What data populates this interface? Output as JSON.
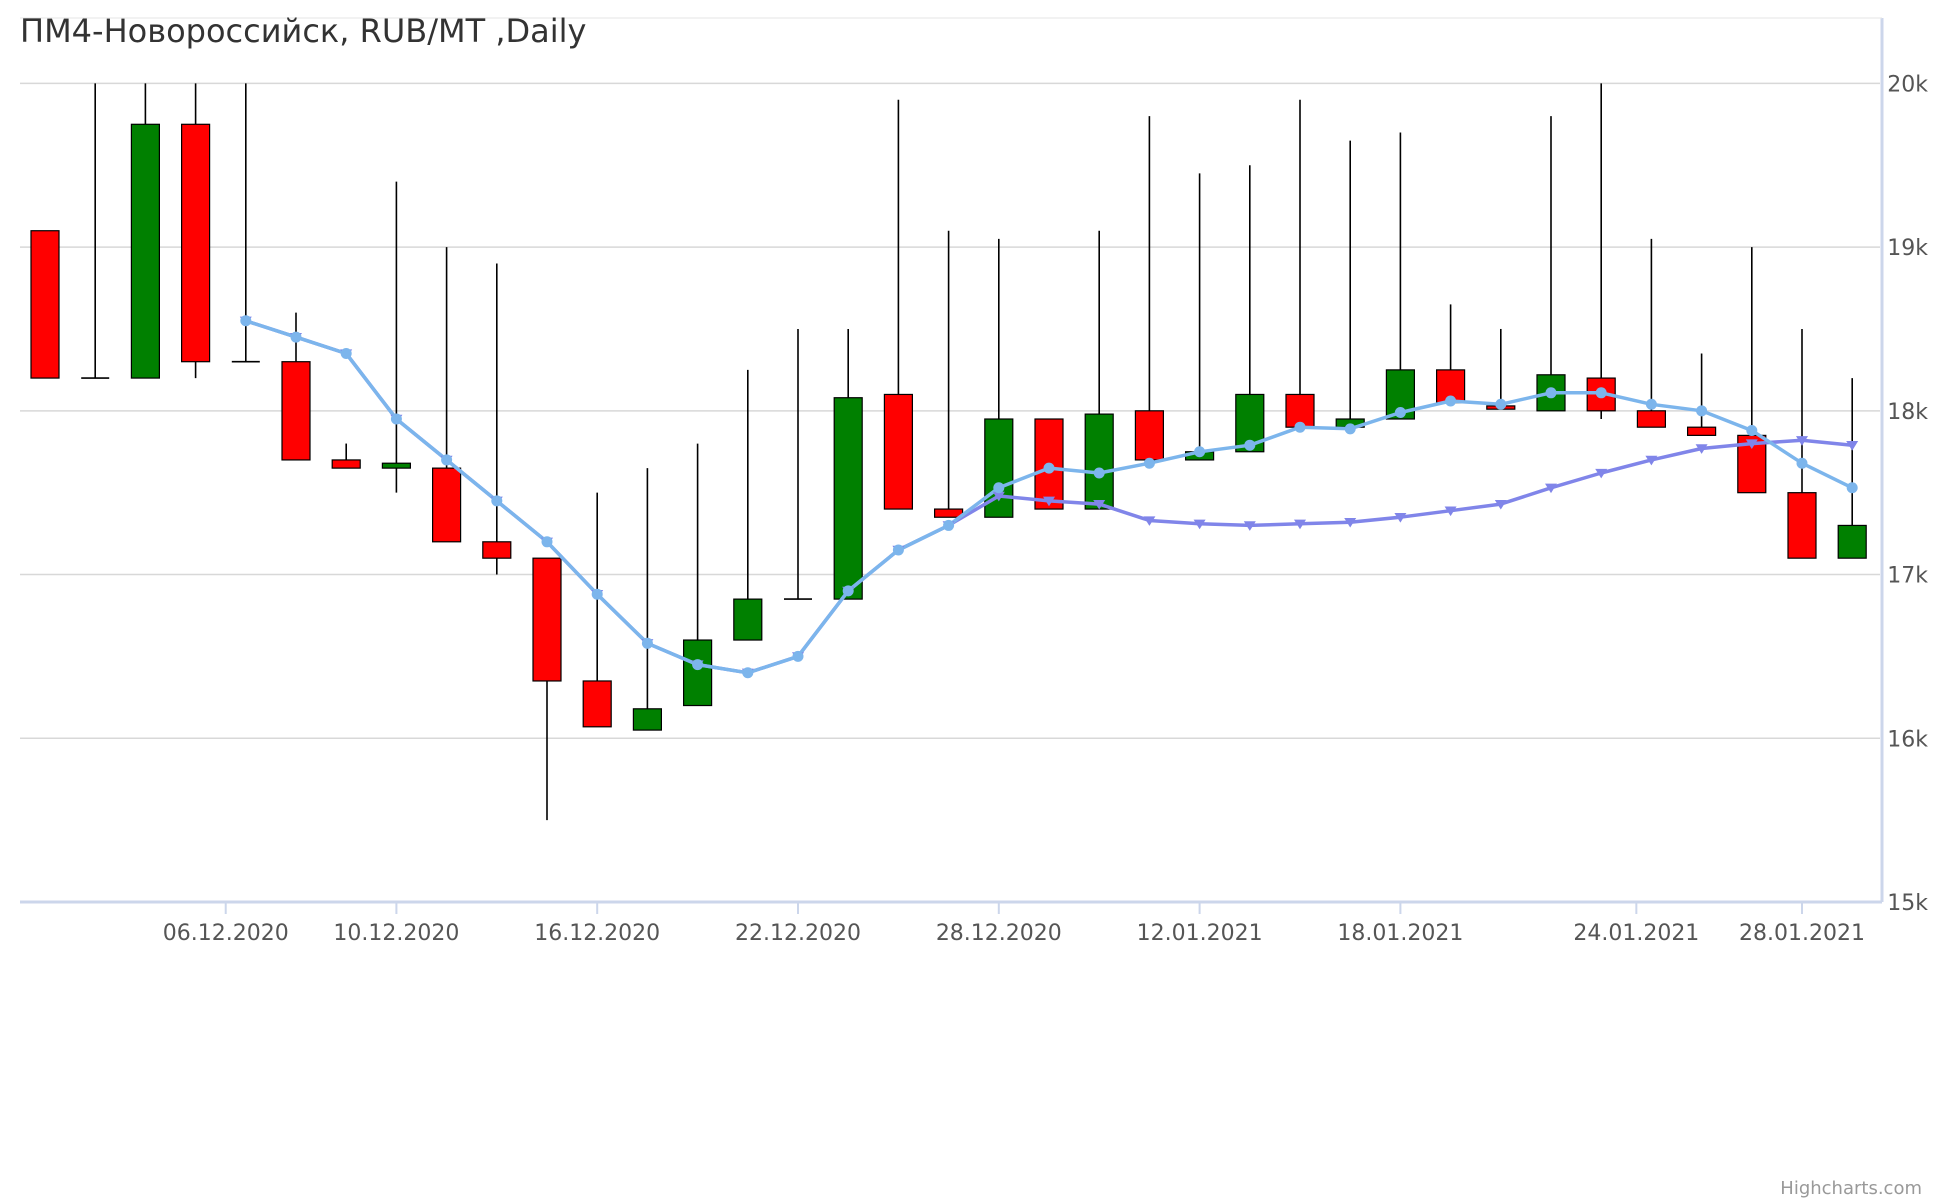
{
  "chart_data": {
    "type": "candlestick",
    "title": "ПМ4-Новороссийск, RUB/MT ,Daily",
    "credits": "Highcharts.com",
    "ylim": [
      15000,
      20500
    ],
    "y_ticks": [
      {
        "value": 15000,
        "label": "15k"
      },
      {
        "value": 16000,
        "label": "16k"
      },
      {
        "value": 17000,
        "label": "17k"
      },
      {
        "value": 18000,
        "label": "18k"
      },
      {
        "value": 19000,
        "label": "19k"
      },
      {
        "value": 20000,
        "label": "20k"
      }
    ],
    "x_ticks": [
      {
        "index": 3.6,
        "label": "06.12.2020"
      },
      {
        "index": 7.0,
        "label": "10.12.2020"
      },
      {
        "index": 11.0,
        "label": "16.12.2020"
      },
      {
        "index": 15.0,
        "label": "22.12.2020"
      },
      {
        "index": 19.0,
        "label": "28.12.2020"
      },
      {
        "index": 23.0,
        "label": "12.01.2021"
      },
      {
        "index": 27.0,
        "label": "18.01.2021"
      },
      {
        "index": 31.7,
        "label": "24.01.2021"
      },
      {
        "index": 35.0,
        "label": "28.01.2021"
      }
    ],
    "grid": true,
    "legend": "none",
    "colors": {
      "up": "#008000",
      "down": "#ff0000",
      "wick": "#000000",
      "ma_fast": "#8085e9",
      "ma_slow": "#7cb5ec",
      "ma_long": "#8085e9",
      "grid": "#d8d8d8",
      "axis": "#ccd6eb"
    },
    "ohlc": [
      {
        "open": 19100,
        "high": 19100,
        "low": 18200,
        "close": 18200
      },
      {
        "open": 18200,
        "high": 20000,
        "low": 18200,
        "close": 18200
      },
      {
        "open": 18200,
        "high": 20000,
        "low": 18200,
        "close": 19750
      },
      {
        "open": 19750,
        "high": 20000,
        "low": 18200,
        "close": 18300
      },
      {
        "open": 18300,
        "high": 20000,
        "low": 18300,
        "close": 18300
      },
      {
        "open": 18300,
        "high": 18600,
        "low": 17700,
        "close": 17700
      },
      {
        "open": 17700,
        "high": 17800,
        "low": 17650,
        "close": 17650
      },
      {
        "open": 17650,
        "high": 19400,
        "low": 17500,
        "close": 17680
      },
      {
        "open": 17650,
        "high": 19000,
        "low": 17200,
        "close": 17200
      },
      {
        "open": 17200,
        "high": 18900,
        "low": 17000,
        "close": 17100
      },
      {
        "open": 17100,
        "high": 17100,
        "low": 15500,
        "close": 16350
      },
      {
        "open": 16350,
        "high": 17500,
        "low": 16070,
        "close": 16070
      },
      {
        "open": 16050,
        "high": 17650,
        "low": 16050,
        "close": 16180
      },
      {
        "open": 16200,
        "high": 17800,
        "low": 16200,
        "close": 16600
      },
      {
        "open": 16600,
        "high": 18250,
        "low": 16600,
        "close": 16850
      },
      {
        "open": 16850,
        "high": 18500,
        "low": 16850,
        "close": 16850
      },
      {
        "open": 16850,
        "high": 18500,
        "low": 16850,
        "close": 18080
      },
      {
        "open": 18100,
        "high": 19900,
        "low": 17400,
        "close": 17400
      },
      {
        "open": 17400,
        "high": 19100,
        "low": 17350,
        "close": 17350
      },
      {
        "open": 17350,
        "high": 19050,
        "low": 17350,
        "close": 17950
      },
      {
        "open": 17950,
        "high": 17950,
        "low": 17400,
        "close": 17400
      },
      {
        "open": 17400,
        "high": 19100,
        "low": 17400,
        "close": 17980
      },
      {
        "open": 18000,
        "high": 19800,
        "low": 17700,
        "close": 17700
      },
      {
        "open": 17700,
        "high": 19450,
        "low": 17700,
        "close": 17750
      },
      {
        "open": 17750,
        "high": 19500,
        "low": 17750,
        "close": 18100
      },
      {
        "open": 18100,
        "high": 19900,
        "low": 17900,
        "close": 17900
      },
      {
        "open": 17900,
        "high": 19650,
        "low": 17900,
        "close": 17950
      },
      {
        "open": 17950,
        "high": 19700,
        "low": 17950,
        "close": 18250
      },
      {
        "open": 18250,
        "high": 18650,
        "low": 18050,
        "close": 18050
      },
      {
        "open": 18030,
        "high": 18500,
        "low": 18030,
        "close": 18010
      },
      {
        "open": 18000,
        "high": 19800,
        "low": 18000,
        "close": 18220
      },
      {
        "open": 18200,
        "high": 20000,
        "low": 17950,
        "close": 18000
      },
      {
        "open": 18000,
        "high": 19050,
        "low": 17900,
        "close": 17900
      },
      {
        "open": 17900,
        "high": 18350,
        "low": 17850,
        "close": 17850
      },
      {
        "open": 17850,
        "high": 19000,
        "low": 17500,
        "close": 17500
      },
      {
        "open": 17500,
        "high": 18500,
        "low": 17100,
        "close": 17100
      },
      {
        "open": 17100,
        "high": 18200,
        "low": 17100,
        "close": 17300
      }
    ],
    "series": [
      {
        "marker": "triangle-down",
        "values": [
          null,
          null,
          null,
          null,
          18550,
          18450,
          18350,
          17950,
          17700,
          17450,
          17200,
          16880,
          16580,
          16450,
          16400,
          16500,
          16900,
          17150,
          17300,
          17480,
          17450,
          17430,
          17330,
          17310,
          17300,
          17310,
          17320,
          17350,
          17390,
          17430,
          17530,
          17620,
          17700,
          17770,
          17800,
          17820,
          17790
        ]
      },
      {
        "marker": "circle",
        "values": [
          null,
          null,
          null,
          null,
          18550,
          18450,
          18350,
          17950,
          17700,
          17450,
          17200,
          16880,
          16580,
          16450,
          16400,
          16500,
          16900,
          17150,
          17300,
          17530,
          17650,
          17620,
          17680,
          17750,
          17790,
          17900,
          17890,
          17990,
          18060,
          18040,
          18110,
          18110,
          18040,
          18000,
          17880,
          17680,
          17530
        ]
      }
    ]
  }
}
